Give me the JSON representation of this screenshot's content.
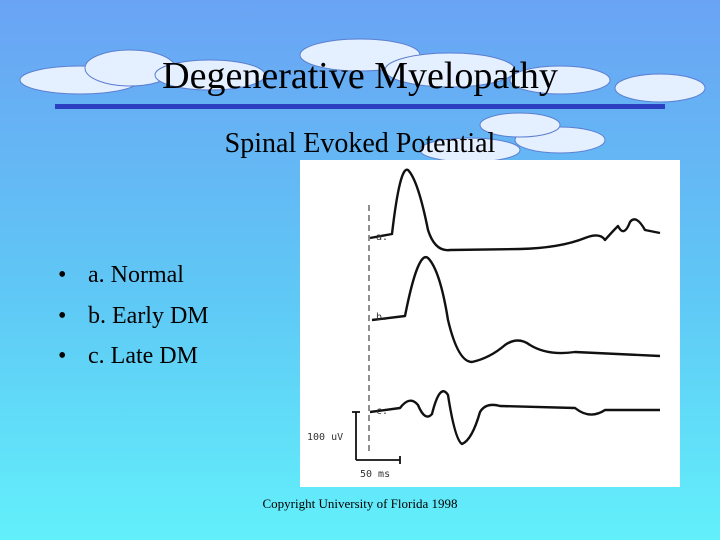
{
  "header": {
    "title": "Degenerative Myelopathy",
    "subtitle": "Spinal Evoked Potential"
  },
  "bullets": [
    "a. Normal",
    "b. Early DM",
    "c. Late DM"
  ],
  "figure": {
    "labels": [
      "a.",
      "b.",
      "c."
    ],
    "amplitude_scale": "100 uV",
    "time_scale": "50 ms"
  },
  "footer": {
    "copyright": "Copyright University of Florida 1998"
  }
}
